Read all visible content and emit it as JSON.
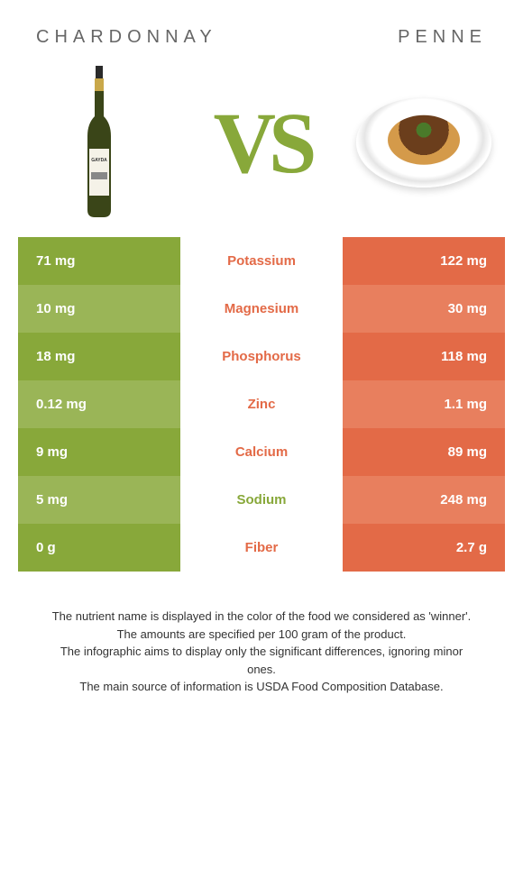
{
  "titles": {
    "left": "CHARDONNAY",
    "right": "PENNE"
  },
  "vs": "VS",
  "colors": {
    "green_dark": "#88a83a",
    "green_light": "#9ab557",
    "orange_dark": "#e36a47",
    "orange_light": "#e87f5e"
  },
  "rows": [
    {
      "left": "71 mg",
      "mid": "Potassium",
      "right": "122 mg",
      "winner": "orange"
    },
    {
      "left": "10 mg",
      "mid": "Magnesium",
      "right": "30 mg",
      "winner": "orange"
    },
    {
      "left": "18 mg",
      "mid": "Phosphorus",
      "right": "118 mg",
      "winner": "orange"
    },
    {
      "left": "0.12 mg",
      "mid": "Zinc",
      "right": "1.1 mg",
      "winner": "orange"
    },
    {
      "left": "9 mg",
      "mid": "Calcium",
      "right": "89 mg",
      "winner": "orange"
    },
    {
      "left": "5 mg",
      "mid": "Sodium",
      "right": "248 mg",
      "winner": "green"
    },
    {
      "left": "0 g",
      "mid": "Fiber",
      "right": "2.7 g",
      "winner": "orange"
    }
  ],
  "footer": [
    "The nutrient name is displayed in the color of the food we considered as 'winner'.",
    "The amounts are specified per 100 gram of the product.",
    "The infographic aims to display only the significant differences, ignoring minor ones.",
    "The main source of information is USDA Food Composition Database."
  ]
}
